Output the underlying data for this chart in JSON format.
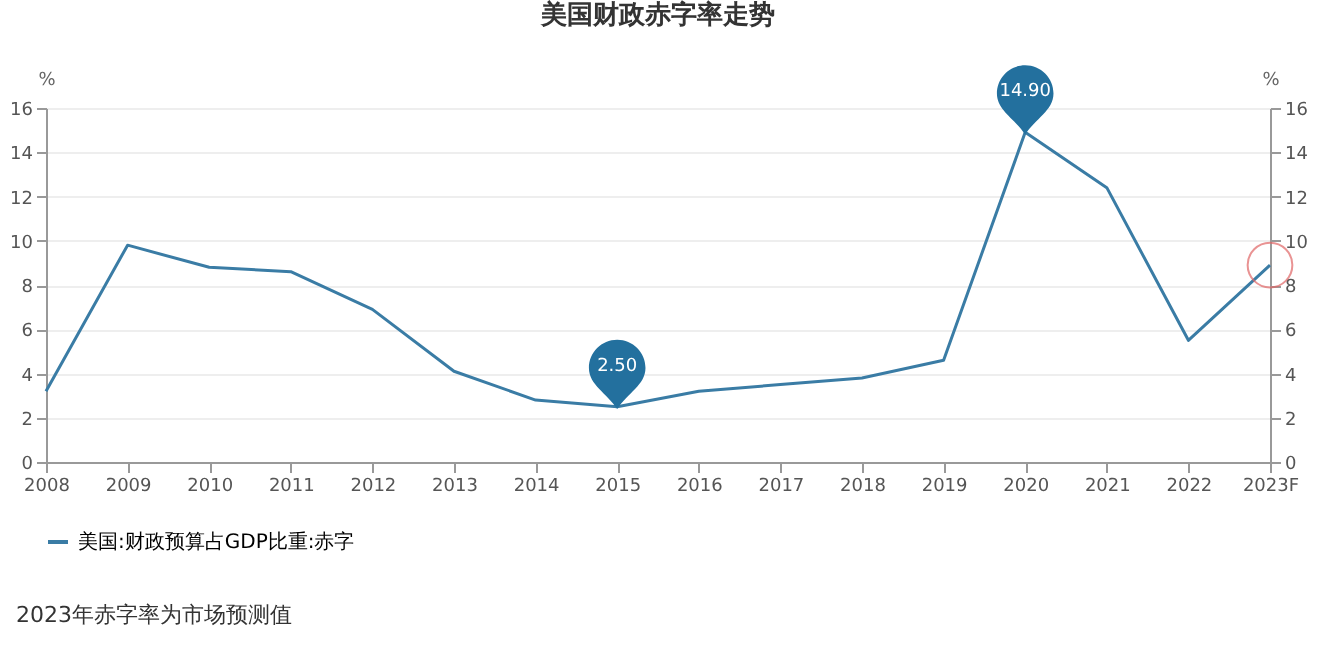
{
  "chart_data": {
    "type": "line",
    "title": "美国财政赤字率走势",
    "ylabel": "%",
    "y2label": "%",
    "categories": [
      "2008",
      "2009",
      "2010",
      "2011",
      "2012",
      "2013",
      "2014",
      "2015",
      "2016",
      "2017",
      "2018",
      "2019",
      "2020",
      "2021",
      "2022",
      "2023F"
    ],
    "series": [
      {
        "name": "美国:财政预算占GDP比重:赤字",
        "color": "#3a7ca5",
        "values": [
          3.2,
          9.8,
          8.8,
          8.6,
          6.9,
          4.1,
          2.8,
          2.5,
          3.2,
          3.5,
          3.8,
          4.6,
          14.9,
          12.4,
          5.5,
          8.9
        ]
      }
    ],
    "ylim": [
      0,
      16
    ],
    "yticks": [
      0,
      2,
      4,
      6,
      8,
      10,
      12,
      14,
      16
    ],
    "y2lim": [
      0,
      16
    ],
    "y2ticks": [
      0,
      2,
      4,
      6,
      8,
      10,
      12,
      14,
      16
    ],
    "grid": "y",
    "legend": "bottom",
    "marker": "none",
    "annotations": [
      {
        "text": "2.50",
        "x": "2015",
        "y": 2.5
      },
      {
        "text": "14.90",
        "x": "2020",
        "y": 14.9
      },
      "2023年赤字率为市场预测值"
    ]
  }
}
